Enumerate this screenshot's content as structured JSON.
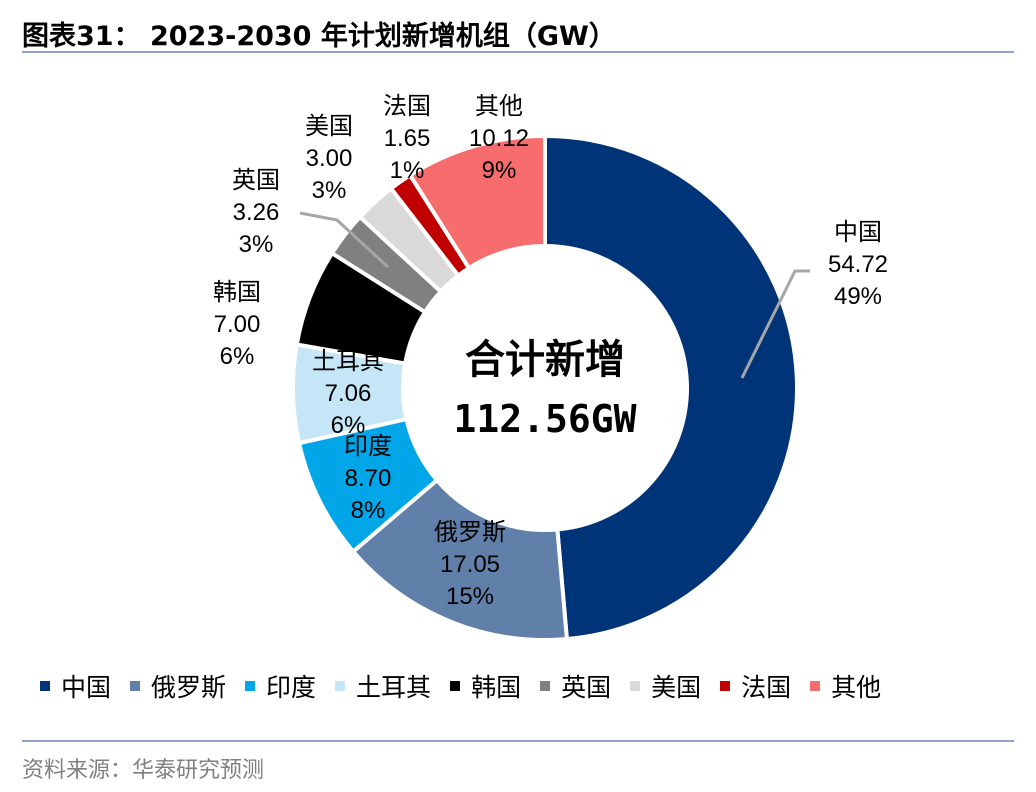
{
  "title": "图表31：  2023-2030 年计划新增机组（GW）",
  "source": "资料来源：华泰研究预测",
  "chart_data": {
    "type": "pie",
    "donut": true,
    "center_label": "合计新增",
    "total_label": "112.56GW",
    "legend_position": "bottom",
    "slices": [
      {
        "name": "中国",
        "value": 54.72,
        "percent": "49%",
        "color": "#003478"
      },
      {
        "name": "俄罗斯",
        "value": 17.05,
        "percent": "15%",
        "color": "#6080aa"
      },
      {
        "name": "印度",
        "value": 8.7,
        "percent": "8%",
        "color": "#00a6e8"
      },
      {
        "name": "土耳其",
        "value": 7.06,
        "percent": "6%",
        "color": "#c5e6f6"
      },
      {
        "name": "韩国",
        "value": 7.0,
        "percent": "6%",
        "color": "#000000"
      },
      {
        "name": "英国",
        "value": 3.26,
        "percent": "3%",
        "color": "#808080"
      },
      {
        "name": "美国",
        "value": 3.0,
        "percent": "3%",
        "color": "#d9d9d9"
      },
      {
        "name": "法国",
        "value": 1.65,
        "percent": "1%",
        "color": "#c00000"
      },
      {
        "name": "其他",
        "value": 10.12,
        "percent": "9%",
        "color": "#f76c6c"
      }
    ]
  }
}
